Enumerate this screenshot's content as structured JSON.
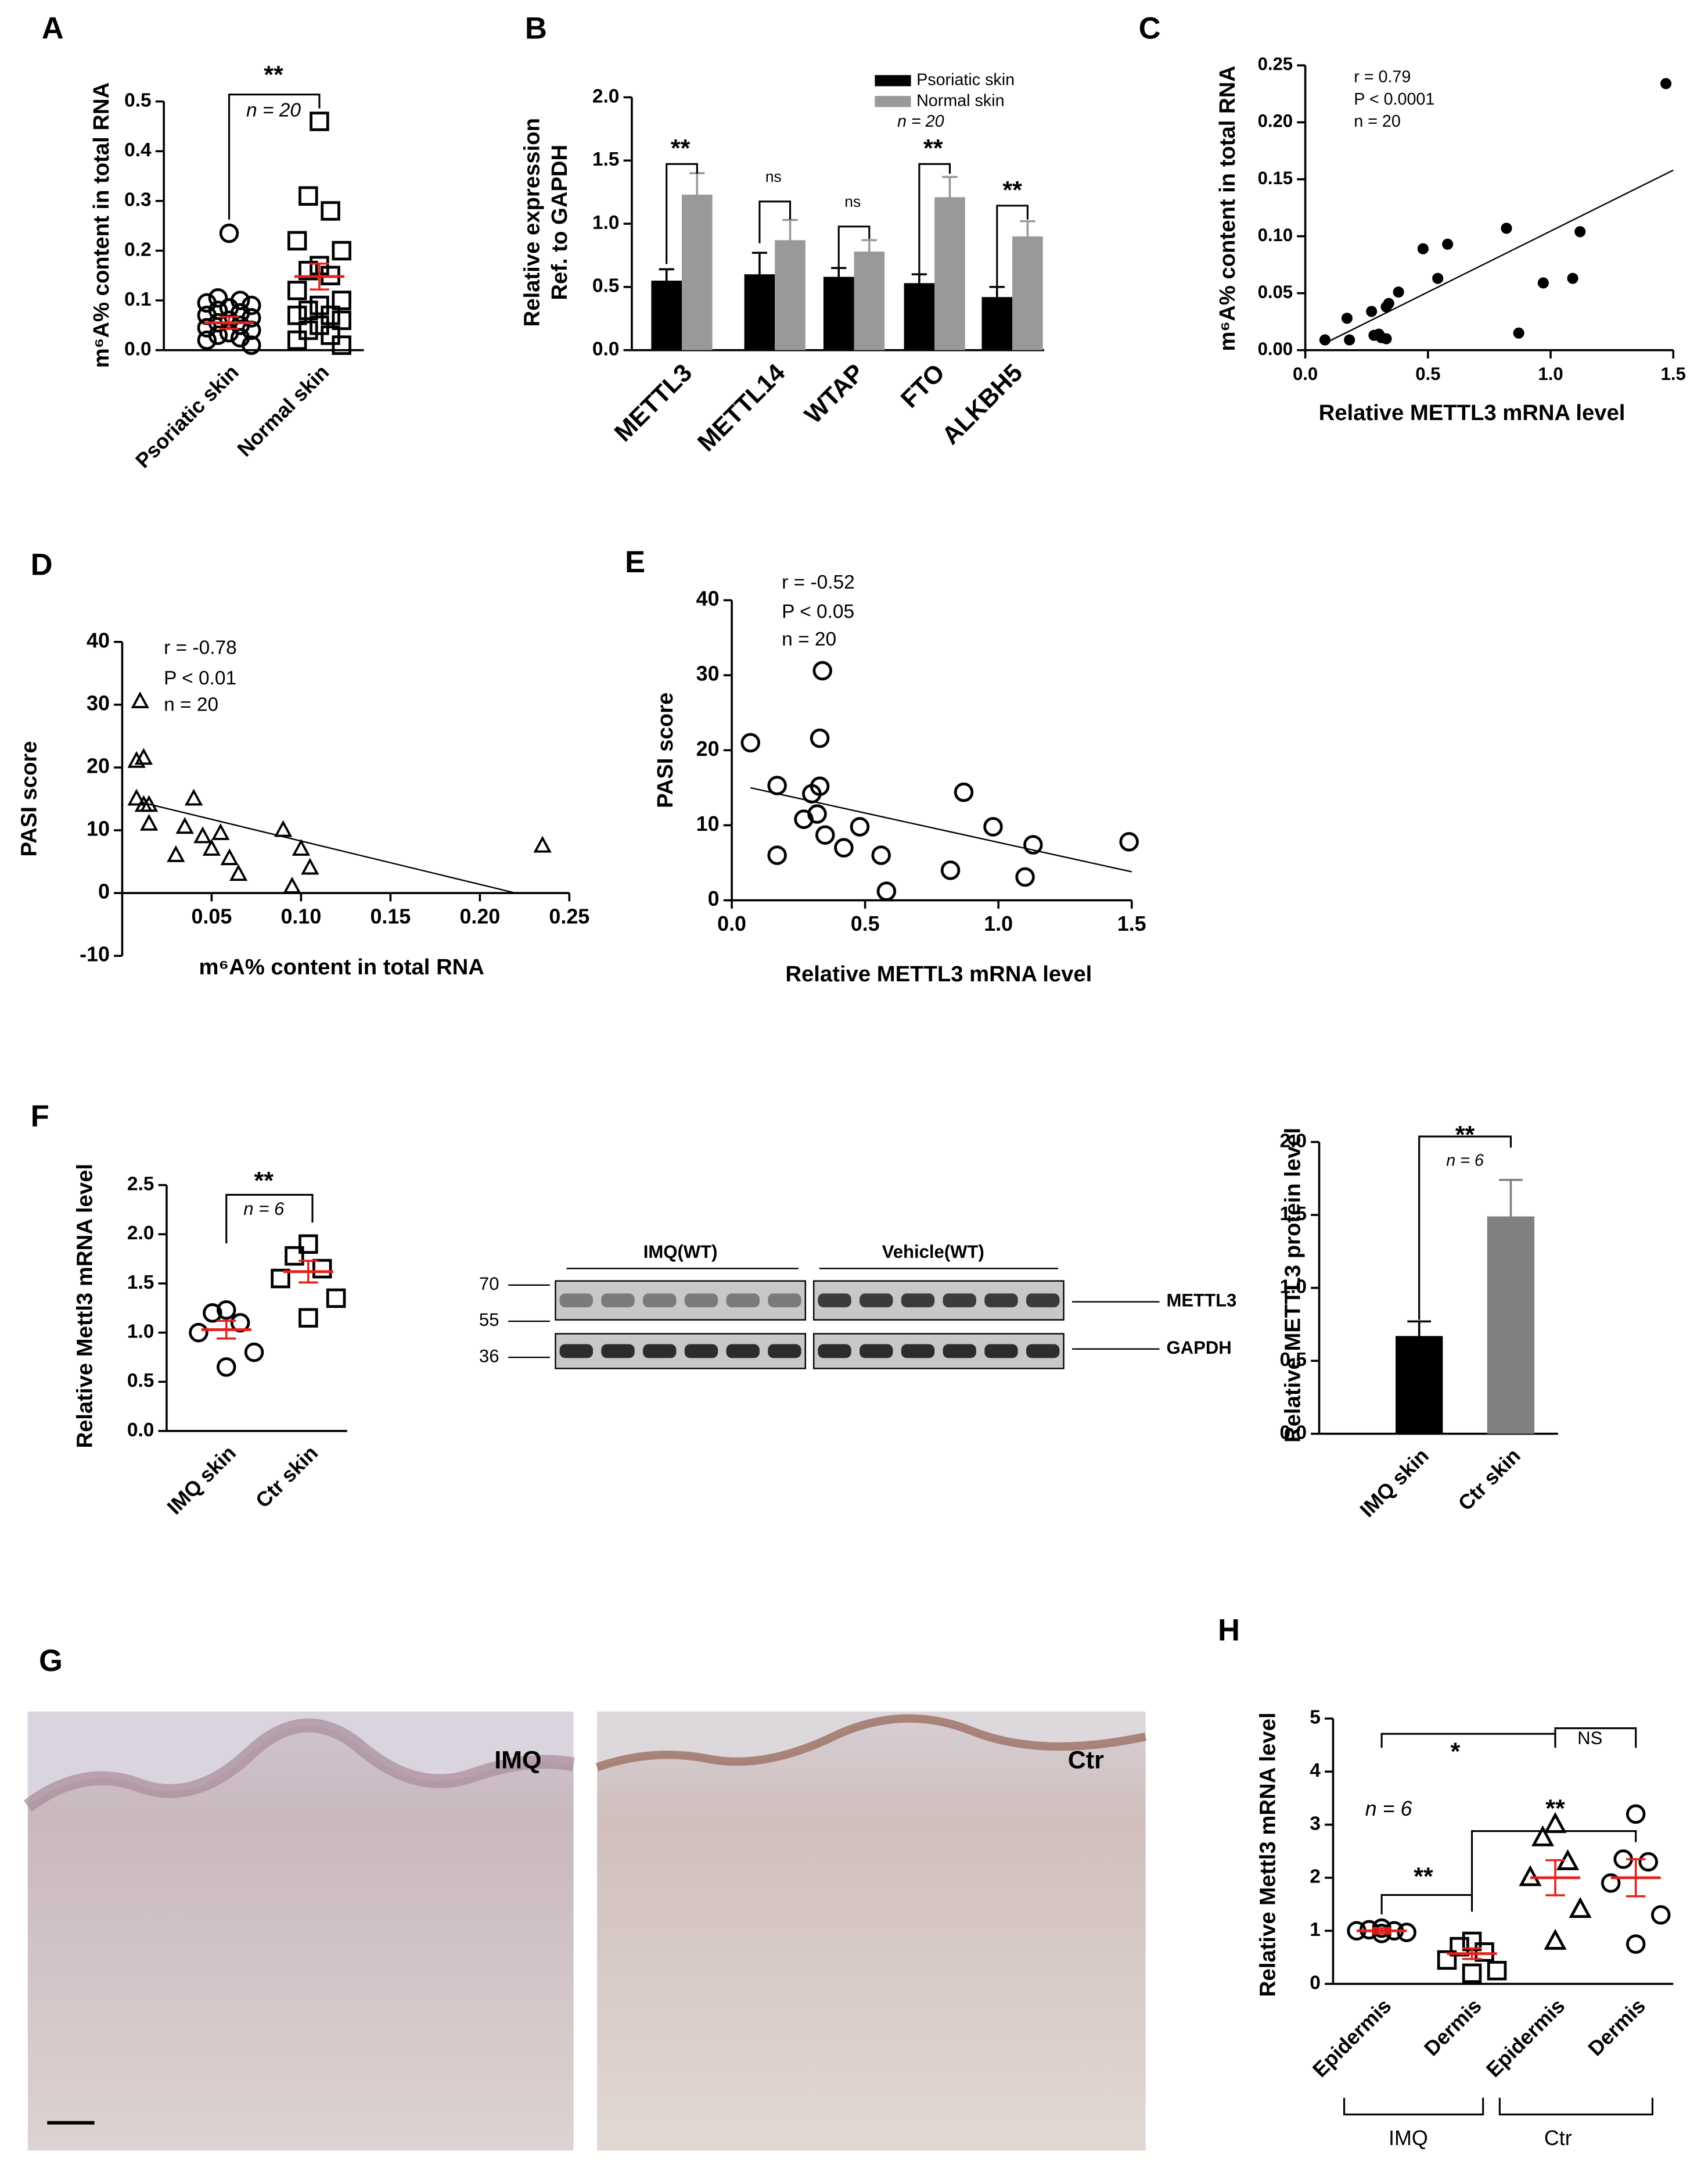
{
  "chart_data": [
    {
      "type": "dot",
      "panel": "A",
      "ylabel": "m⁶A% content in total RNA",
      "categories": [
        "Psoriatic skin",
        "Normal skin"
      ],
      "values": [
        [
          0.235,
          0.105,
          0.1,
          0.095,
          0.09,
          0.085,
          0.08,
          0.075,
          0.07,
          0.065,
          0.06,
          0.055,
          0.05,
          0.045,
          0.04,
          0.035,
          0.03,
          0.025,
          0.02,
          0.01
        ],
        [
          0.46,
          0.31,
          0.28,
          0.22,
          0.2,
          0.17,
          0.16,
          0.15,
          0.12,
          0.1,
          0.09,
          0.08,
          0.07,
          0.07,
          0.06,
          0.05,
          0.04,
          0.03,
          0.02,
          0.01
        ]
      ],
      "markers": [
        "circle",
        "square"
      ],
      "means": [
        0.055,
        0.148
      ],
      "errors": [
        0.012,
        0.026
      ],
      "mean_color": "#e8201c",
      "ylim": [
        0,
        0.5
      ],
      "yticks": [
        {
          "value": 0,
          "label": "0.0"
        },
        0.1,
        0.2,
        0.3,
        0.4,
        0.5
      ],
      "annotations": [
        "**",
        "n = 20"
      ]
    },
    {
      "type": "bar",
      "panel": "B",
      "ylabel": [
        "Relative expression",
        "Ref. to GAPDH"
      ],
      "categories": [
        "METTL3",
        "METTL14",
        "WTAP",
        "FTO",
        "ALKBH5"
      ],
      "series": [
        {
          "name": "Psoriatic skin",
          "color": "#000000",
          "values": [
            0.55,
            0.6,
            0.58,
            0.53,
            0.42
          ],
          "errors": [
            0.09,
            0.17,
            0.07,
            0.07,
            0.08
          ]
        },
        {
          "name": "Normal skin",
          "color": "#999999",
          "values": [
            1.23,
            0.87,
            0.78,
            1.21,
            0.9
          ],
          "errors": [
            0.17,
            0.16,
            0.09,
            0.16,
            0.12
          ]
        }
      ],
      "ylim": [
        0,
        2
      ],
      "yticks": [
        {
          "value": 0,
          "label": "0.0"
        },
        0.5,
        {
          "value": 1,
          "label": "1.0"
        },
        1.5,
        {
          "value": 2,
          "label": "2.0"
        }
      ],
      "annotations": [
        "**",
        "ns",
        "ns",
        "**",
        "**",
        "n = 20"
      ]
    },
    {
      "type": "scatter",
      "panel": "C",
      "ylabel": "m⁶A% content in total RNA",
      "xlabel": "Relative METTL3 mRNA level",
      "marker": "dot",
      "x": [
        0.08,
        0.17,
        0.18,
        0.27,
        0.28,
        0.31,
        0.33,
        0.34,
        0.33,
        0.38,
        0.48,
        0.54,
        0.58,
        0.82,
        0.87,
        0.97,
        1.09,
        1.12,
        1.47,
        0.3
      ],
      "values": [
        0.009,
        0.028,
        0.009,
        0.034,
        0.013,
        0.011,
        0.038,
        0.041,
        0.01,
        0.051,
        0.089,
        0.063,
        0.093,
        0.107,
        0.015,
        0.059,
        0.063,
        0.104,
        0.234,
        0.014
      ],
      "fit": {
        "x": [
          0.07,
          1.5
        ],
        "values": [
          0.005,
          0.158
        ]
      },
      "xlim": [
        0,
        1.5
      ],
      "ylim": [
        0,
        0.25
      ],
      "xticks": [
        {
          "value": 0,
          "label": "0.0"
        },
        0.5,
        {
          "value": 1,
          "label": "1.0"
        },
        1.5
      ],
      "yticks": [
        {
          "value": 0,
          "label": "0.00"
        },
        0.05,
        {
          "value": 0.1,
          "label": "0.10"
        },
        0.15,
        {
          "value": 0.2,
          "label": "0.20"
        },
        0.25
      ],
      "annotations": [
        "r = 0.79",
        "P < 0.0001",
        "n = 20"
      ]
    },
    {
      "type": "scatter",
      "panel": "D",
      "ylabel": "PASI score",
      "xlabel": "m⁶A% content in total RNA",
      "marker": "triangle",
      "x": [
        0.01,
        0.008,
        0.012,
        0.008,
        0.012,
        0.015,
        0.015,
        0.03,
        0.035,
        0.04,
        0.045,
        0.05,
        0.055,
        0.06,
        0.065,
        0.09,
        0.095,
        0.1,
        0.105,
        0.235
      ],
      "values": [
        30.5,
        21,
        21.5,
        15,
        14,
        14,
        11,
        6,
        10.5,
        15,
        9,
        7,
        9.5,
        5.5,
        3,
        10,
        1,
        7,
        4,
        7.5
      ],
      "fit": {
        "x": [
          0.01,
          0.22
        ],
        "values": [
          14.5,
          0
        ]
      },
      "xlim": [
        0,
        0.25
      ],
      "ylim": [
        -10,
        40
      ],
      "xticks": [
        0.05,
        {
          "value": 0.1,
          "label": "0.10"
        },
        0.15,
        {
          "value": 0.2,
          "label": "0.20"
        },
        0.25
      ],
      "yticks": [
        -10,
        0,
        10,
        20,
        30,
        40
      ],
      "annotations": [
        "r = -0.78",
        "P < 0.01",
        "n = 20"
      ]
    },
    {
      "type": "scatter",
      "panel": "E",
      "ylabel": "PASI score",
      "xlabel": "Relative METTL3 mRNA level",
      "marker": "circle",
      "x": [
        0.07,
        0.17,
        0.17,
        0.27,
        0.3,
        0.32,
        0.33,
        0.33,
        0.34,
        0.35,
        0.42,
        0.48,
        0.56,
        0.58,
        0.82,
        0.87,
        0.98,
        1.1,
        1.13,
        1.49
      ],
      "values": [
        21,
        15.3,
        6,
        10.8,
        14.2,
        11.5,
        21.6,
        15.2,
        30.6,
        8.7,
        7,
        9.8,
        6,
        1.2,
        4,
        14.4,
        9.8,
        3.1,
        7.4,
        7.8
      ],
      "fit": {
        "x": [
          0.07,
          1.5
        ],
        "values": [
          15,
          3.8
        ]
      },
      "xlim": [
        0,
        1.5
      ],
      "ylim": [
        0,
        40
      ],
      "xticks": [
        {
          "value": 0,
          "label": "0.0"
        },
        0.5,
        {
          "value": 1,
          "label": "1.0"
        },
        1.5
      ],
      "yticks": [
        0,
        10,
        20,
        30,
        40
      ],
      "annotations": [
        "r = -0.52",
        "P < 0.05",
        "n = 20"
      ]
    },
    {
      "type": "dot",
      "panel": "F",
      "ylabel": "Relative Mettl3 mRNA level",
      "categories": [
        "IMQ skin",
        "Ctr skin"
      ],
      "values": [
        [
          1.23,
          1.2,
          1.1,
          1.0,
          0.8,
          0.65
        ],
        [
          1.9,
          1.78,
          1.65,
          1.55,
          1.35,
          1.15
        ]
      ],
      "markers": [
        "circle",
        "square"
      ],
      "means": [
        1.03,
        1.62
      ],
      "errors": [
        0.09,
        0.11
      ],
      "mean_color": "#e8201c",
      "ylim": [
        0,
        2.5
      ],
      "yticks": [
        {
          "value": 0,
          "label": "0.0"
        },
        0.5,
        {
          "value": 1,
          "label": "1.0"
        },
        1.5,
        {
          "value": 2,
          "label": "2.0"
        },
        2.5
      ],
      "annotations": [
        "**",
        "n = 6"
      ]
    },
    {
      "type": "bar",
      "ylabel": "Relative METTL3 protein level",
      "categories": [
        "IMQ skin",
        "Ctr skin"
      ],
      "values": [
        0.67,
        1.49
      ],
      "errors": [
        0.1,
        0.25
      ],
      "colors": [
        "#000000",
        "#808080"
      ],
      "ylim": [
        0,
        2
      ],
      "yticks": [
        {
          "value": 0,
          "label": "0.0"
        },
        0.5,
        {
          "value": 1,
          "label": "1.0"
        },
        1.5,
        {
          "value": 2,
          "label": "2.0"
        }
      ],
      "annotations": [
        "**",
        "n = 6"
      ]
    },
    {
      "type": "dot",
      "panel": "H",
      "ylabel": "Relative Mettl3 mRNA level",
      "categories": [
        "Epidermis",
        "Dermis",
        "Epidermis",
        "Dermis"
      ],
      "groups": [
        "IMQ",
        "Ctr"
      ],
      "values": [
        [
          1.05,
          1.02,
          1.0,
          1.0,
          0.97,
          0.95
        ],
        [
          0.8,
          0.7,
          0.6,
          0.45,
          0.25,
          0.2
        ],
        [
          3.0,
          2.75,
          2.3,
          2.0,
          1.4,
          0.8
        ],
        [
          3.2,
          2.35,
          2.3,
          1.9,
          1.3,
          0.75
        ]
      ],
      "markers": [
        "circle",
        "square",
        "triangle",
        "circle"
      ],
      "means": [
        1.0,
        0.57,
        2.0,
        2.0
      ],
      "errors": [
        0.05,
        0.1,
        0.33,
        0.35
      ],
      "mean_color": "#e8201c",
      "ylim": [
        0,
        5
      ],
      "yticks": [
        0,
        1,
        2,
        3,
        4,
        5
      ],
      "annotations": [
        "*",
        "NS",
        "**",
        "**",
        "n = 6"
      ]
    }
  ],
  "blot": {
    "groups": [
      "IMQ(WT)",
      "Vehicle(WT)"
    ],
    "markers": [
      "70",
      "55",
      "36"
    ],
    "bands": [
      "METTL3",
      "GAPDH"
    ]
  },
  "histology": {
    "panel": "G",
    "labels": [
      "IMQ",
      "Ctr"
    ]
  }
}
